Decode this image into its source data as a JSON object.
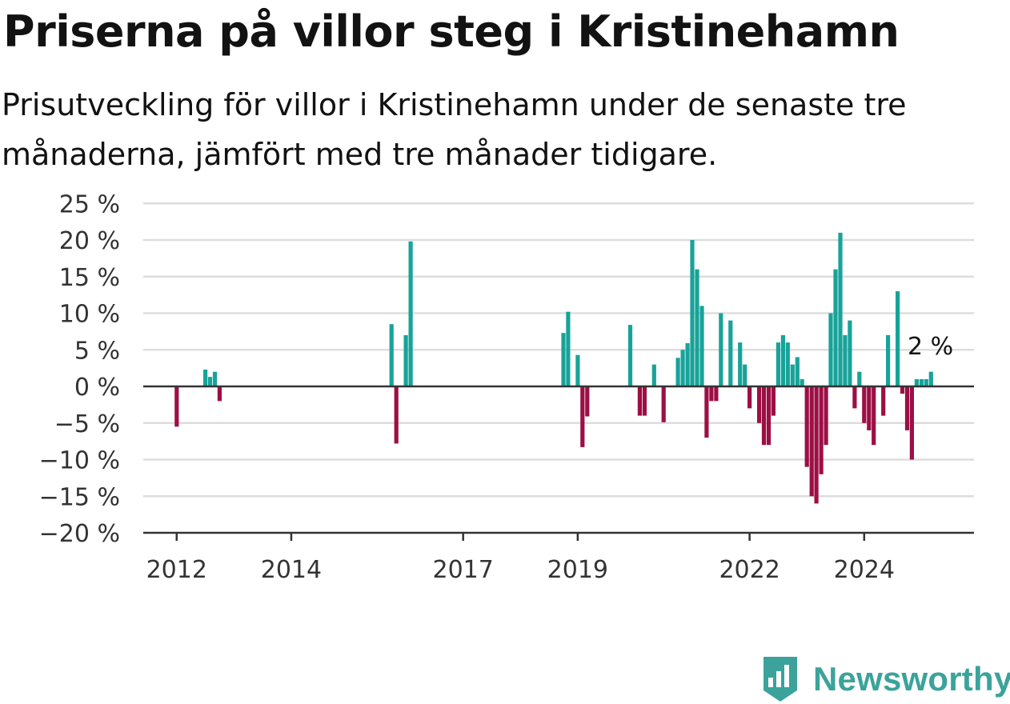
{
  "title": "Priserna på villor steg i Kristinehamn",
  "subtitle": "Prisutveckling för villor i Kristinehamn under de senaste tre månaderna, jämfört med tre månader tidigare.",
  "brand": "Newsworthy",
  "colors": {
    "positive": "#18a399",
    "negative": "#9c0f45",
    "grid": "#dddddd",
    "axis": "#333333",
    "brand": "#3ba39b"
  },
  "chart_data": {
    "type": "bar",
    "title": "Priserna på villor steg i Kristinehamn",
    "subtitle": "Prisutveckling för villor i Kristinehamn under de senaste tre månaderna, jämfört med tre månader tidigare.",
    "xlabel": "",
    "ylabel": "",
    "ylim": [
      -20,
      25
    ],
    "yticks": [
      -20,
      -15,
      -10,
      -5,
      0,
      5,
      10,
      15,
      20,
      25
    ],
    "ytick_labels": [
      "−20 %",
      "−15 %",
      "−10 %",
      "−5 %",
      "0 %",
      "5 %",
      "10 %",
      "15 %",
      "20 %",
      "25 %"
    ],
    "xticks": [
      "2012",
      "2014",
      "2017",
      "2019",
      "2022",
      "2024"
    ],
    "xlim": [
      "2011-06",
      "2025-12"
    ],
    "grid": true,
    "last_value_label": "2 %",
    "x": [
      "2012-01",
      "2012-07",
      "2012-08",
      "2012-09",
      "2012-10",
      "2015-10",
      "2015-11",
      "2016-01",
      "2016-02",
      "2018-10",
      "2018-11",
      "2019-01",
      "2019-02",
      "2019-03",
      "2019-12",
      "2020-02",
      "2020-03",
      "2020-05",
      "2020-07",
      "2020-10",
      "2020-11",
      "2020-12",
      "2021-01",
      "2021-02",
      "2021-03",
      "2021-04",
      "2021-05",
      "2021-06",
      "2021-07",
      "2021-09",
      "2021-11",
      "2021-12",
      "2022-01",
      "2022-03",
      "2022-04",
      "2022-05",
      "2022-06",
      "2022-07",
      "2022-08",
      "2022-09",
      "2022-10",
      "2022-11",
      "2022-12",
      "2023-01",
      "2023-02",
      "2023-03",
      "2023-04",
      "2023-05",
      "2023-06",
      "2023-07",
      "2023-08",
      "2023-09",
      "2023-10",
      "2023-11",
      "2023-12",
      "2024-01",
      "2024-02",
      "2024-03",
      "2024-05",
      "2024-06",
      "2024-08",
      "2024-09",
      "2024-10",
      "2024-11",
      "2024-12",
      "2025-01",
      "2025-02",
      "2025-03"
    ],
    "values": [
      -5.5,
      2.3,
      1.3,
      2.0,
      -2.0,
      8.5,
      -7.8,
      7.0,
      19.8,
      7.3,
      10.2,
      4.3,
      -8.3,
      -4.1,
      8.4,
      -4.0,
      -4.0,
      3.0,
      -4.9,
      3.9,
      5.0,
      5.9,
      20.0,
      16.0,
      11.0,
      -7.0,
      -2.0,
      -2.0,
      10.0,
      9.0,
      6.0,
      3.0,
      -3.0,
      -5.0,
      -8.0,
      -8.0,
      -4.0,
      6.0,
      7.0,
      6.0,
      3.0,
      4.0,
      1.0,
      -11.0,
      -15.0,
      -16.0,
      -12.0,
      -8.0,
      10.0,
      16.0,
      21.0,
      7.0,
      9.0,
      -3.0,
      2.0,
      -5.0,
      -6.0,
      -8.0,
      -4.0,
      7.0,
      13.0,
      -1.0,
      -6.0,
      -10.0,
      1.0,
      1.0,
      1.0,
      2.0
    ]
  }
}
